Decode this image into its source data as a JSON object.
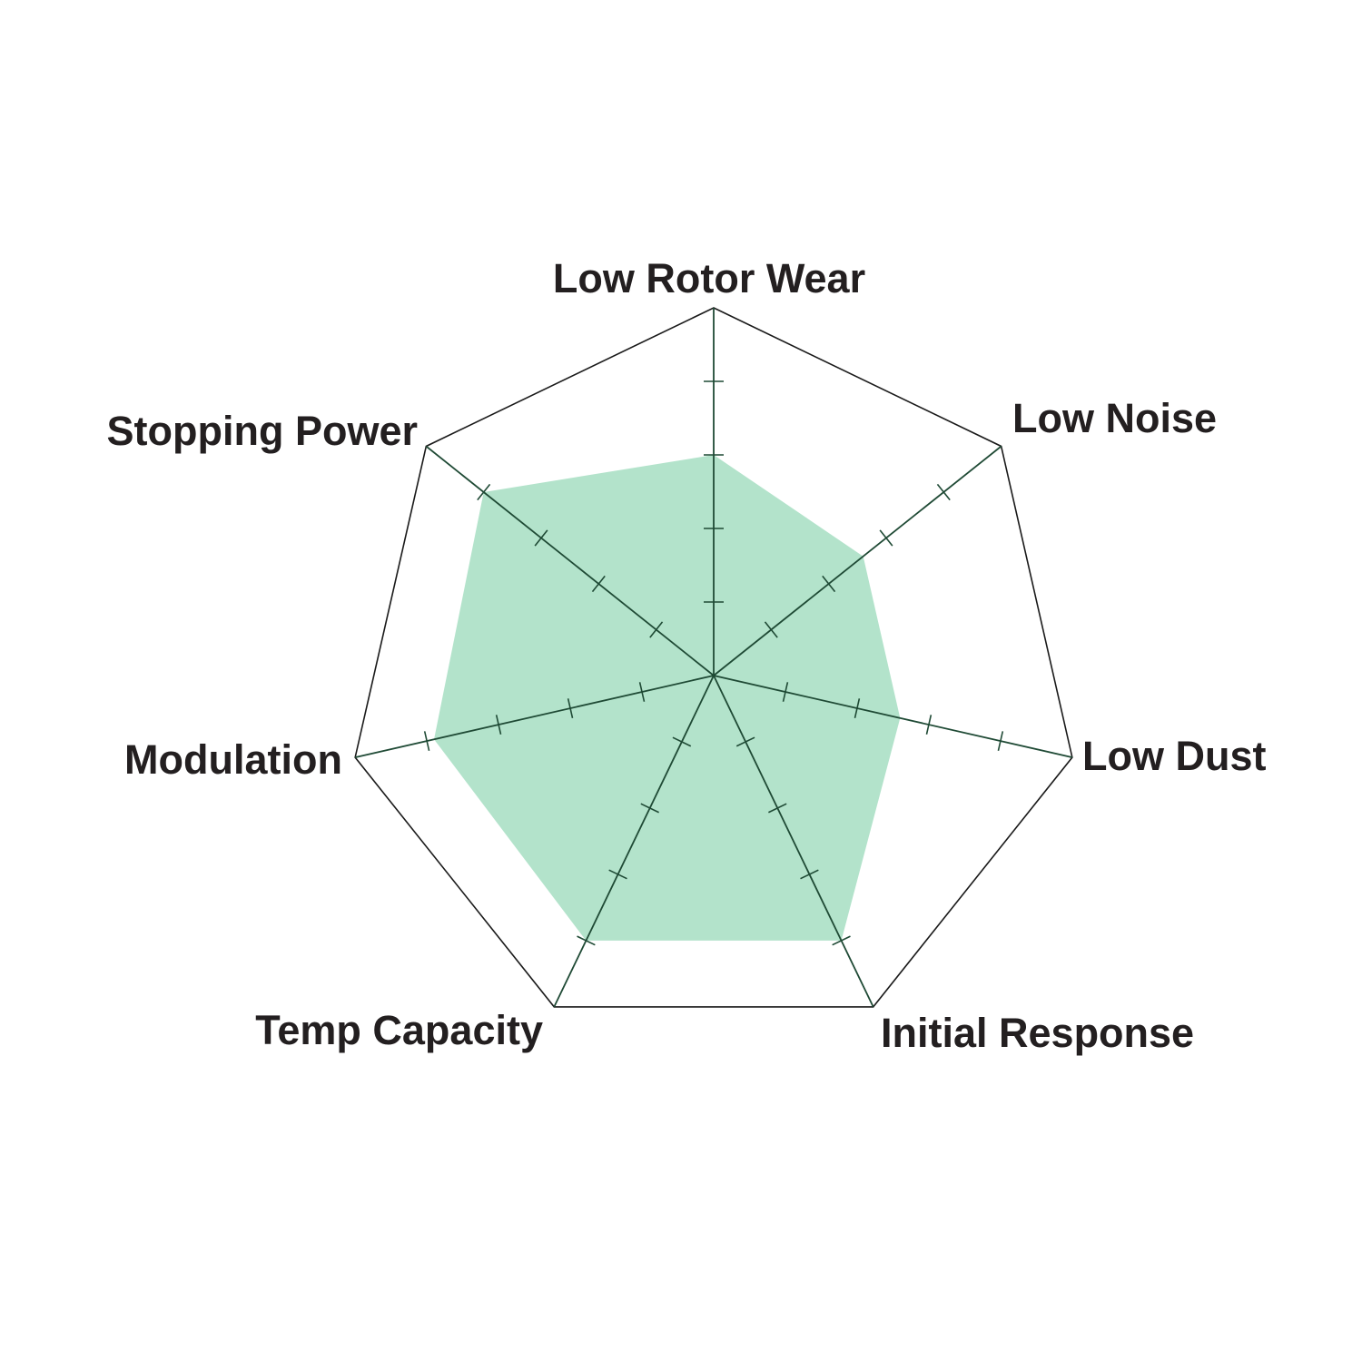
{
  "chart_data": {
    "type": "radar",
    "title": "",
    "axes": [
      "Low Rotor Wear",
      "Low Noise",
      "Low Dust",
      "Initial Response",
      "Temp Capacity",
      "Modulation",
      "Stopping Power"
    ],
    "values": [
      3,
      2.6,
      2.6,
      4,
      4,
      3.9,
      4
    ],
    "range": [
      0,
      5
    ],
    "tick_step": 1,
    "grid": false,
    "legend": "none",
    "colors": {
      "fill": "#b3e3cb",
      "axis": "#1f4a35",
      "outline": "#1a1a1a",
      "label": "#231f20"
    }
  }
}
